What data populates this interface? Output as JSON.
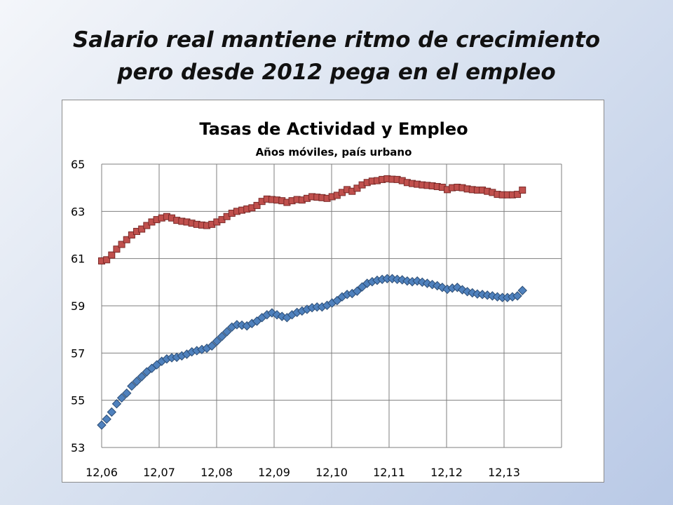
{
  "slide": {
    "title_line1": "Salario real mantiene ritmo de crecimiento",
    "title_line2": "pero desde 2012 pega en el empleo"
  },
  "colors": {
    "actividad_fill": "#c0504d",
    "actividad_stroke": "#7a2a28",
    "empleo_fill": "#4f81bd",
    "empleo_stroke": "#2c4d75"
  },
  "chart_data": {
    "type": "scatter",
    "title": "Tasas de Actividad y Empleo",
    "subtitle": "Años móviles, país urbano",
    "xlabel": "",
    "ylabel": "",
    "x_tick_labels": [
      "12,06",
      "12,07",
      "12,08",
      "12,09",
      "12,10",
      "12,11",
      "12,12",
      "12,13"
    ],
    "y_ticks": [
      53,
      55,
      57,
      59,
      61,
      63,
      65
    ],
    "ylim": [
      53,
      65
    ],
    "grid": true,
    "legend": "none",
    "series": [
      {
        "marker": "square",
        "values": [
          60.9,
          60.95,
          61.15,
          61.4,
          61.6,
          61.8,
          62.0,
          62.15,
          62.25,
          62.4,
          62.55,
          62.65,
          62.72,
          62.78,
          62.72,
          62.62,
          62.58,
          62.55,
          62.5,
          62.45,
          62.42,
          62.4,
          62.45,
          62.55,
          62.65,
          62.78,
          62.92,
          63.0,
          63.05,
          63.1,
          63.15,
          63.25,
          63.42,
          63.52,
          63.5,
          63.48,
          63.45,
          63.38,
          63.45,
          63.5,
          63.48,
          63.55,
          63.62,
          63.6,
          63.58,
          63.55,
          63.62,
          63.68,
          63.8,
          63.92,
          63.85,
          63.98,
          64.12,
          64.22,
          64.28,
          64.3,
          64.35,
          64.38,
          64.36,
          64.35,
          64.3,
          64.22,
          64.18,
          64.15,
          64.12,
          64.1,
          64.08,
          64.05,
          64.02,
          63.92,
          64.0,
          64.02,
          64.0,
          63.95,
          63.92,
          63.9,
          63.9,
          63.85,
          63.8,
          63.72,
          63.7,
          63.7,
          63.7,
          63.72,
          63.9
        ]
      },
      {
        "marker": "diamond",
        "values": [
          53.95,
          54.2,
          54.5,
          54.85,
          55.1,
          55.3,
          55.6,
          55.8,
          56.0,
          56.2,
          56.35,
          56.5,
          56.65,
          56.75,
          56.8,
          56.82,
          56.88,
          56.95,
          57.05,
          57.1,
          57.15,
          57.2,
          57.3,
          57.5,
          57.7,
          57.9,
          58.1,
          58.2,
          58.18,
          58.15,
          58.25,
          58.35,
          58.5,
          58.62,
          58.7,
          58.62,
          58.55,
          58.5,
          58.62,
          58.72,
          58.78,
          58.85,
          58.92,
          58.95,
          58.95,
          59.02,
          59.12,
          59.22,
          59.38,
          59.48,
          59.52,
          59.62,
          59.8,
          59.95,
          60.02,
          60.08,
          60.12,
          60.15,
          60.15,
          60.12,
          60.1,
          60.05,
          60.02,
          60.05,
          60.0,
          59.95,
          59.9,
          59.85,
          59.78,
          59.7,
          59.75,
          59.78,
          59.68,
          59.6,
          59.55,
          59.5,
          59.48,
          59.45,
          59.42,
          59.38,
          59.35,
          59.35,
          59.38,
          59.42,
          59.65
        ]
      }
    ]
  }
}
